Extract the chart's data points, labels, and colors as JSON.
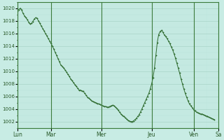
{
  "background_color": "#c8ece4",
  "plot_bg_color": "#c8ece4",
  "grid_major_color": "#aad4c8",
  "grid_minor_color": "#b8e0d8",
  "line_color": "#2d6a2d",
  "marker_color": "#2d6a2d",
  "ylim": [
    1001,
    1021
  ],
  "yticks": [
    1002,
    1004,
    1006,
    1008,
    1010,
    1012,
    1014,
    1016,
    1018,
    1020
  ],
  "day_labels": [
    "Lun",
    "Mar",
    "Mer",
    "Jeu",
    "Ven",
    "Sa"
  ],
  "day_positions": [
    0,
    24,
    60,
    96,
    126,
    144
  ],
  "pressure_values": [
    1019.5,
    1019.8,
    1020.0,
    1019.7,
    1019.2,
    1018.8,
    1018.5,
    1018.2,
    1017.8,
    1017.5,
    1017.6,
    1017.9,
    1018.3,
    1018.5,
    1018.4,
    1018.0,
    1017.6,
    1017.2,
    1016.8,
    1016.4,
    1016.0,
    1015.6,
    1015.2,
    1014.8,
    1014.4,
    1014.0,
    1013.5,
    1013.0,
    1012.5,
    1012.0,
    1011.5,
    1011.0,
    1010.8,
    1010.5,
    1010.2,
    1009.9,
    1009.5,
    1009.2,
    1008.8,
    1008.5,
    1008.2,
    1007.9,
    1007.6,
    1007.3,
    1007.0,
    1007.0,
    1006.9,
    1006.8,
    1006.5,
    1006.2,
    1005.9,
    1005.7,
    1005.5,
    1005.3,
    1005.2,
    1005.1,
    1005.0,
    1004.9,
    1004.8,
    1004.7,
    1004.6,
    1004.5,
    1004.4,
    1004.4,
    1004.3,
    1004.3,
    1004.4,
    1004.5,
    1004.6,
    1004.5,
    1004.3,
    1004.1,
    1003.8,
    1003.5,
    1003.2,
    1003.0,
    1002.8,
    1002.6,
    1002.4,
    1002.2,
    1002.1,
    1002.0,
    1002.0,
    1002.1,
    1002.3,
    1002.5,
    1002.8,
    1003.1,
    1003.5,
    1004.0,
    1004.5,
    1005.0,
    1005.5,
    1006.0,
    1006.5,
    1007.2,
    1008.0,
    1009.0,
    1010.5,
    1012.5,
    1014.5,
    1015.8,
    1016.3,
    1016.5,
    1016.2,
    1015.8,
    1015.5,
    1015.2,
    1014.8,
    1014.4,
    1013.9,
    1013.4,
    1012.8,
    1012.1,
    1011.3,
    1010.5,
    1009.7,
    1008.8,
    1008.0,
    1007.2,
    1006.5,
    1005.9,
    1005.3,
    1004.8,
    1004.5,
    1004.2,
    1003.9,
    1003.7,
    1003.5,
    1003.4,
    1003.3,
    1003.2,
    1003.2,
    1003.1,
    1003.0,
    1002.9,
    1002.8,
    1002.7,
    1002.6,
    1002.5,
    1002.4,
    1002.3
  ]
}
